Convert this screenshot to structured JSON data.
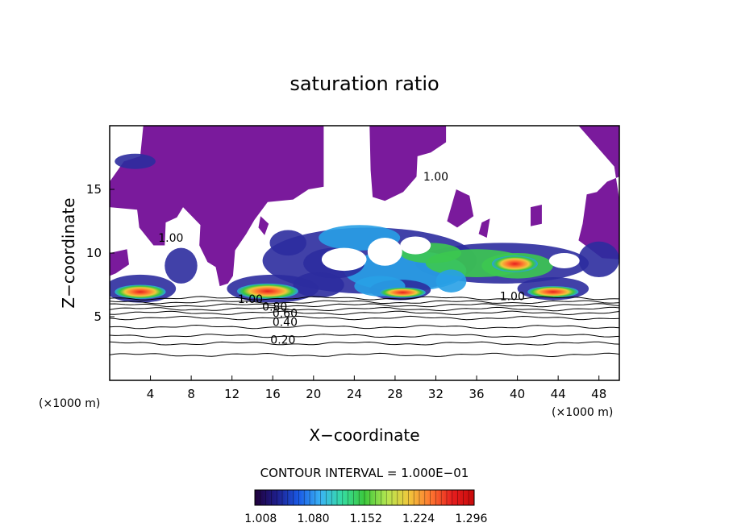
{
  "chart_data": {
    "type": "heatmap",
    "title": "saturation ratio",
    "xlabel": "X−coordinate",
    "ylabel": "Z−coordinate",
    "x_unit_left": "(×1000 m)",
    "x_unit_right": "(×1000 m)",
    "xlim": [
      0,
      50
    ],
    "ylim": [
      0,
      20
    ],
    "x_ticks": [
      4,
      8,
      12,
      16,
      20,
      24,
      28,
      32,
      36,
      40,
      44,
      48
    ],
    "y_ticks": [
      5,
      10,
      15
    ],
    "contour_interval_text": "CONTOUR INTERVAL = 1.000E−01",
    "contour_labels": [
      {
        "text": "1.00",
        "x": 13.8,
        "z": 6.4
      },
      {
        "text": "0.80",
        "x": 16.2,
        "z": 5.8
      },
      {
        "text": "0.60",
        "x": 17.2,
        "z": 5.3
      },
      {
        "text": "0.40",
        "x": 17.2,
        "z": 4.6
      },
      {
        "text": "0.20",
        "x": 17.0,
        "z": 3.2
      },
      {
        "text": "1.00",
        "x": 39.5,
        "z": 6.6
      },
      {
        "text": "1.00",
        "x": 6.0,
        "z": 11.2
      },
      {
        "text": "1.00",
        "x": 32.0,
        "z": 16.0
      }
    ],
    "contour_levels_below_cloud": [
      {
        "level": 0.1,
        "z": 2.0
      },
      {
        "level": 0.2,
        "z": 2.9
      },
      {
        "level": 0.3,
        "z": 3.5
      },
      {
        "level": 0.4,
        "z": 4.2
      },
      {
        "level": 0.5,
        "z": 4.9
      },
      {
        "level": 0.6,
        "z": 5.3
      },
      {
        "level": 0.7,
        "z": 5.6
      },
      {
        "level": 0.8,
        "z": 5.9
      },
      {
        "level": 0.9,
        "z": 6.15
      },
      {
        "level": 1.0,
        "z": 6.45
      }
    ],
    "cores": [
      {
        "x_range": [
          0.5,
          5.5
        ],
        "z_range": [
          6.4,
          7.5
        ],
        "peak": 1.296
      },
      {
        "x_range": [
          12.5,
          18.5
        ],
        "z_range": [
          6.4,
          7.6
        ],
        "peak": 1.296
      },
      {
        "x_range": [
          26.5,
          31
        ],
        "z_range": [
          6.5,
          7.3
        ],
        "peak": 1.26
      },
      {
        "x_range": [
          37.5,
          42
        ],
        "z_range": [
          8.5,
          9.8
        ],
        "peak": 1.296
      },
      {
        "x_range": [
          41,
          46
        ],
        "z_range": [
          6.5,
          7.4
        ],
        "peak": 1.296
      }
    ],
    "colorbar": {
      "ticks": [
        "1.008",
        "1.080",
        "1.152",
        "1.224",
        "1.296"
      ],
      "range": [
        1.0,
        1.3
      ],
      "colors": [
        "#20003a",
        "#1e1e8c",
        "#1a5ae6",
        "#3ab4f5",
        "#36dca0",
        "#3cc83c",
        "#b4e650",
        "#f0c83c",
        "#ff7830",
        "#e61e1e",
        "#c80a0a"
      ]
    },
    "colors": {
      "subsaturated_purple": "#7a1a9c",
      "low_cloud": "#2c2c9e",
      "mid_cloud": "#28a0e6",
      "high_cloud": "#3cc850",
      "core": "#e62828"
    }
  }
}
